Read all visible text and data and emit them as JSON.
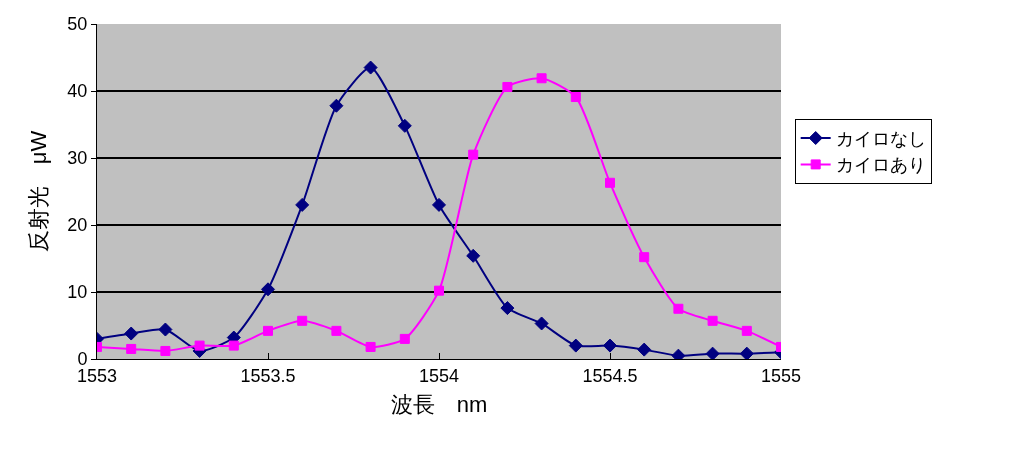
{
  "chart_data": {
    "type": "line",
    "xlabel": "波長　nm",
    "ylabel": "反射光　μW",
    "x": [
      1553,
      1553.1,
      1553.2,
      1553.3,
      1553.4,
      1553.5,
      1553.6,
      1553.7,
      1553.8,
      1553.9,
      1554,
      1554.1,
      1554.2,
      1554.3,
      1554.4,
      1554.5,
      1554.6,
      1554.7,
      1554.8,
      1554.9,
      1555
    ],
    "series": [
      {
        "name": "カイロなし",
        "color": "#000080",
        "marker": "diamond",
        "values": [
          3,
          3.8,
          4.4,
          1.2,
          3.2,
          10.4,
          23,
          37.8,
          43.5,
          34.8,
          23,
          15.4,
          7.6,
          5.3,
          2,
          2,
          1.4,
          0.5,
          0.8,
          0.8,
          1
        ]
      },
      {
        "name": "カイロあり",
        "color": "#ff00ff",
        "marker": "square",
        "values": [
          1.8,
          1.5,
          1.2,
          2,
          2,
          4.2,
          5.7,
          4.2,
          1.8,
          3,
          10.2,
          30.5,
          40.6,
          41.9,
          39.1,
          26.3,
          15.2,
          7.5,
          5.7,
          4.2,
          1.8
        ]
      }
    ],
    "xlim": [
      1553,
      1555
    ],
    "xticks": [
      1553,
      1553.5,
      1554,
      1554.5,
      1555
    ],
    "ylim": [
      0,
      50
    ],
    "yticks": [
      0,
      10,
      20,
      30,
      40,
      50
    ],
    "grid": "y",
    "legend": "right",
    "line_style": "solid"
  }
}
